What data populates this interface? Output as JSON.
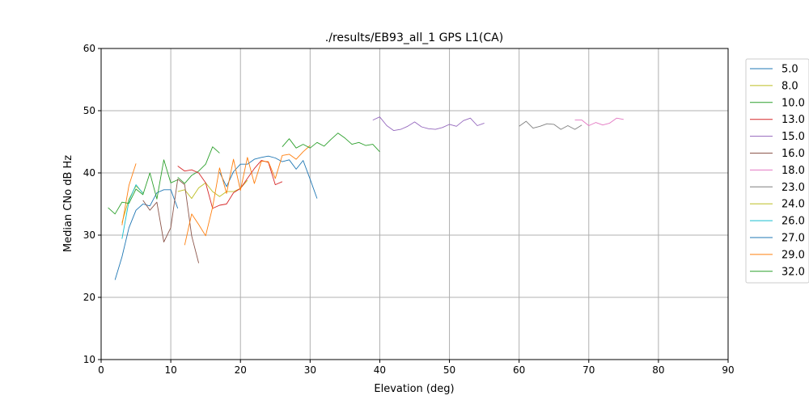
{
  "chart_data": {
    "type": "line",
    "title": "./results/EB93_all_1 GPS L1(CA)",
    "xlabel": "Elevation (deg)",
    "ylabel": "Median CNo dB Hz",
    "xlim": [
      0,
      90
    ],
    "ylim": [
      10,
      60
    ],
    "xticks": [
      0,
      10,
      20,
      30,
      40,
      50,
      60,
      70,
      80,
      90
    ],
    "yticks": [
      10,
      20,
      30,
      40,
      50,
      60
    ],
    "grid": true,
    "legend_position": "outside-right",
    "series": [
      {
        "name": "5.0",
        "color": "#1f77b4",
        "points": [
          [
            2,
            22.8
          ],
          [
            3,
            26.5
          ],
          [
            4,
            31.2
          ],
          [
            5,
            34.0
          ],
          [
            6,
            35.0
          ],
          [
            7,
            34.7
          ],
          [
            8,
            36.8
          ],
          [
            9,
            37.3
          ],
          [
            10,
            37.3
          ],
          [
            11,
            34.3
          ]
        ]
      },
      {
        "name": "8.0",
        "color": "#bcbd22",
        "points": [
          [
            11,
            37.0
          ],
          [
            12,
            37.3
          ],
          [
            13,
            35.9
          ],
          [
            14,
            37.6
          ],
          [
            15,
            38.4
          ],
          [
            16,
            37.0
          ],
          [
            17,
            36.2
          ],
          [
            18,
            37.0
          ],
          [
            19,
            37.0
          ],
          [
            20,
            37.5
          ],
          [
            21,
            38.8
          ]
        ]
      },
      {
        "name": "10.0",
        "color": "#2ca02c",
        "points": [
          [
            11,
            39.3
          ],
          [
            12,
            38.3
          ],
          [
            13,
            39.6
          ],
          [
            14,
            40.3
          ],
          [
            15,
            41.4
          ],
          [
            16,
            44.2
          ],
          [
            17,
            43.2
          ]
        ]
      },
      {
        "name": "13.0",
        "color": "#d62728",
        "points": [
          [
            11,
            41.1
          ],
          [
            12,
            40.3
          ],
          [
            13,
            40.5
          ],
          [
            14,
            40.0
          ],
          [
            15,
            38.4
          ],
          [
            16,
            34.3
          ],
          [
            17,
            34.8
          ],
          [
            18,
            35.0
          ],
          [
            19,
            36.8
          ],
          [
            20,
            37.5
          ],
          [
            21,
            39.1
          ],
          [
            22,
            40.7
          ],
          [
            23,
            42.0
          ],
          [
            24,
            41.7
          ],
          [
            25,
            38.1
          ],
          [
            26,
            38.6
          ]
        ]
      },
      {
        "name": "15.0",
        "color": "#9467bd",
        "points": [
          [
            39,
            48.5
          ],
          [
            40,
            49.0
          ],
          [
            41,
            47.6
          ],
          [
            42,
            46.8
          ],
          [
            43,
            47.0
          ],
          [
            44,
            47.5
          ],
          [
            45,
            48.2
          ],
          [
            46,
            47.4
          ],
          [
            47,
            47.1
          ],
          [
            48,
            47.0
          ],
          [
            49,
            47.3
          ],
          [
            50,
            47.8
          ],
          [
            51,
            47.5
          ],
          [
            52,
            48.4
          ],
          [
            53,
            48.8
          ],
          [
            54,
            47.6
          ],
          [
            55,
            48.0
          ]
        ]
      },
      {
        "name": "16.0",
        "color": "#8c564b",
        "points": [
          [
            6,
            35.6
          ],
          [
            7,
            34.0
          ],
          [
            8,
            35.3
          ],
          [
            9,
            28.9
          ],
          [
            10,
            31.2
          ],
          [
            11,
            39.0
          ],
          [
            12,
            38.1
          ],
          [
            13,
            29.9
          ],
          [
            14,
            25.5
          ]
        ]
      },
      {
        "name": "18.0",
        "color": "#e377c2",
        "points": [
          [
            68,
            48.5
          ],
          [
            69,
            48.5
          ],
          [
            70,
            47.6
          ],
          [
            71,
            48.1
          ],
          [
            72,
            47.7
          ],
          [
            73,
            48.0
          ],
          [
            74,
            48.8
          ],
          [
            75,
            48.6
          ]
        ]
      },
      {
        "name": "23.0",
        "color": "#7f7f7f",
        "points": [
          [
            60,
            47.5
          ],
          [
            61,
            48.3
          ],
          [
            62,
            47.2
          ],
          [
            63,
            47.5
          ],
          [
            64,
            47.9
          ],
          [
            65,
            47.8
          ],
          [
            66,
            47.0
          ],
          [
            67,
            47.6
          ],
          [
            68,
            47.0
          ],
          [
            69,
            47.7
          ]
        ]
      },
      {
        "name": "24.0",
        "color": "#bcbd22",
        "points": [
          [
            3,
            32.0
          ],
          [
            4,
            35.8
          ],
          [
            5,
            37.9
          ],
          [
            6,
            36.8
          ]
        ]
      },
      {
        "name": "26.0",
        "color": "#17becf",
        "points": [
          [
            3,
            29.4
          ],
          [
            4,
            35.5
          ],
          [
            5,
            38.1
          ],
          [
            6,
            36.7
          ]
        ]
      },
      {
        "name": "27.0",
        "color": "#1f77b4",
        "points": [
          [
            17,
            40.1
          ],
          [
            18,
            37.8
          ],
          [
            19,
            40.2
          ],
          [
            20,
            41.4
          ],
          [
            21,
            41.4
          ],
          [
            22,
            42.2
          ],
          [
            23,
            42.5
          ],
          [
            24,
            42.7
          ],
          [
            25,
            42.4
          ],
          [
            26,
            41.8
          ],
          [
            27,
            42.1
          ],
          [
            28,
            40.6
          ],
          [
            29,
            42.0
          ],
          [
            30,
            39.0
          ],
          [
            31,
            35.9
          ]
        ]
      },
      {
        "name": "29.0",
        "color": "#ff7f0e",
        "points": [
          [
            3,
            31.6
          ],
          [
            4,
            38.0
          ],
          [
            5,
            41.5
          ]
        ]
      },
      {
        "name": "29.0",
        "color": "#ff7f0e",
        "points": [
          [
            12,
            28.4
          ],
          [
            13,
            33.4
          ],
          [
            14,
            31.7
          ],
          [
            15,
            29.9
          ],
          [
            16,
            34.5
          ],
          [
            17,
            40.8
          ],
          [
            18,
            36.7
          ],
          [
            19,
            42.2
          ],
          [
            20,
            37.2
          ],
          [
            21,
            42.5
          ],
          [
            22,
            38.3
          ],
          [
            23,
            41.9
          ],
          [
            24,
            41.8
          ],
          [
            25,
            39.1
          ],
          [
            26,
            42.8
          ],
          [
            27,
            43.0
          ],
          [
            28,
            42.2
          ],
          [
            29,
            43.4
          ],
          [
            30,
            44.4
          ]
        ]
      },
      {
        "name": "32.0",
        "color": "#2ca02c",
        "points": [
          [
            1,
            34.4
          ],
          [
            2,
            33.4
          ],
          [
            3,
            35.3
          ],
          [
            4,
            35.1
          ],
          [
            5,
            37.4
          ],
          [
            6,
            36.5
          ],
          [
            7,
            40.0
          ],
          [
            8,
            35.8
          ],
          [
            9,
            42.1
          ],
          [
            10,
            38.4
          ],
          [
            11,
            38.9
          ]
        ]
      },
      {
        "name": "32.0",
        "color": "#2ca02c",
        "points": [
          [
            26,
            44.2
          ],
          [
            27,
            45.5
          ],
          [
            28,
            44.0
          ],
          [
            29,
            44.6
          ],
          [
            30,
            44.0
          ],
          [
            31,
            44.9
          ],
          [
            32,
            44.3
          ],
          [
            33,
            45.4
          ],
          [
            34,
            46.4
          ],
          [
            35,
            45.6
          ],
          [
            36,
            44.6
          ],
          [
            37,
            44.9
          ],
          [
            38,
            44.4
          ],
          [
            39,
            44.6
          ],
          [
            40,
            43.4
          ]
        ]
      }
    ],
    "legend": [
      {
        "name": "5.0",
        "color": "#1f77b4"
      },
      {
        "name": "8.0",
        "color": "#bcbd22"
      },
      {
        "name": "10.0",
        "color": "#2ca02c"
      },
      {
        "name": "13.0",
        "color": "#d62728"
      },
      {
        "name": "15.0",
        "color": "#9467bd"
      },
      {
        "name": "16.0",
        "color": "#8c564b"
      },
      {
        "name": "18.0",
        "color": "#e377c2"
      },
      {
        "name": "23.0",
        "color": "#7f7f7f"
      },
      {
        "name": "24.0",
        "color": "#bcbd22"
      },
      {
        "name": "26.0",
        "color": "#17becf"
      },
      {
        "name": "27.0",
        "color": "#1f77b4"
      },
      {
        "name": "29.0",
        "color": "#ff7f0e"
      },
      {
        "name": "32.0",
        "color": "#2ca02c"
      }
    ]
  }
}
